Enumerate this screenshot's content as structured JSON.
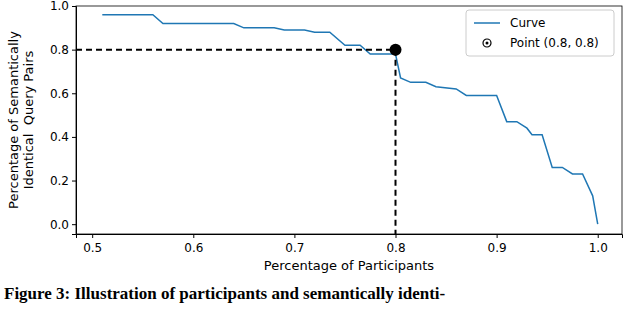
{
  "chart_data": {
    "type": "line",
    "caption": "Figure 3: Illustration of participants and semantically identi-",
    "x_label": "Percentage of Participants",
    "y_label": [
      "Percentage of Semantically",
      "Identical  Query Pairs"
    ],
    "xlim": [
      0.484,
      1.024
    ],
    "ylim": [
      -0.045,
      1.0
    ],
    "xticks": [
      0.5,
      0.6,
      0.7,
      0.8,
      0.9,
      {
        "value": 1,
        "label": "1.0"
      }
    ],
    "yticks": [
      {
        "value": 0,
        "label": "0.0"
      },
      0.2,
      0.4,
      0.6,
      0.8,
      {
        "value": 1,
        "label": "1.0"
      }
    ],
    "legend": "upper right",
    "series": [
      {
        "name": "Curve",
        "type": "line",
        "color": "#1f77b4",
        "x": [
          0.51,
          0.56,
          0.57,
          0.64,
          0.65,
          0.68,
          0.69,
          0.71,
          0.72,
          0.735,
          0.75,
          0.765,
          0.775,
          0.8,
          0.805,
          0.815,
          0.83,
          0.84,
          0.86,
          0.87,
          0.9,
          0.91,
          0.92,
          0.93,
          0.935,
          0.945,
          0.955,
          0.965,
          0.975,
          0.985,
          0.995,
          1.0
        ],
        "values": [
          0.96,
          0.96,
          0.92,
          0.92,
          0.9,
          0.9,
          0.89,
          0.89,
          0.88,
          0.88,
          0.82,
          0.82,
          0.78,
          0.78,
          0.67,
          0.65,
          0.65,
          0.63,
          0.62,
          0.59,
          0.59,
          0.47,
          0.47,
          0.44,
          0.41,
          0.41,
          0.26,
          0.26,
          0.23,
          0.23,
          0.13,
          0.0
        ]
      },
      {
        "name": "Point (0.8, 0.8)",
        "type": "scatter",
        "color": "#000000",
        "marker": "circle",
        "line_style": "dashed",
        "x": [
          0.8
        ],
        "values": [
          0.8
        ]
      }
    ]
  }
}
